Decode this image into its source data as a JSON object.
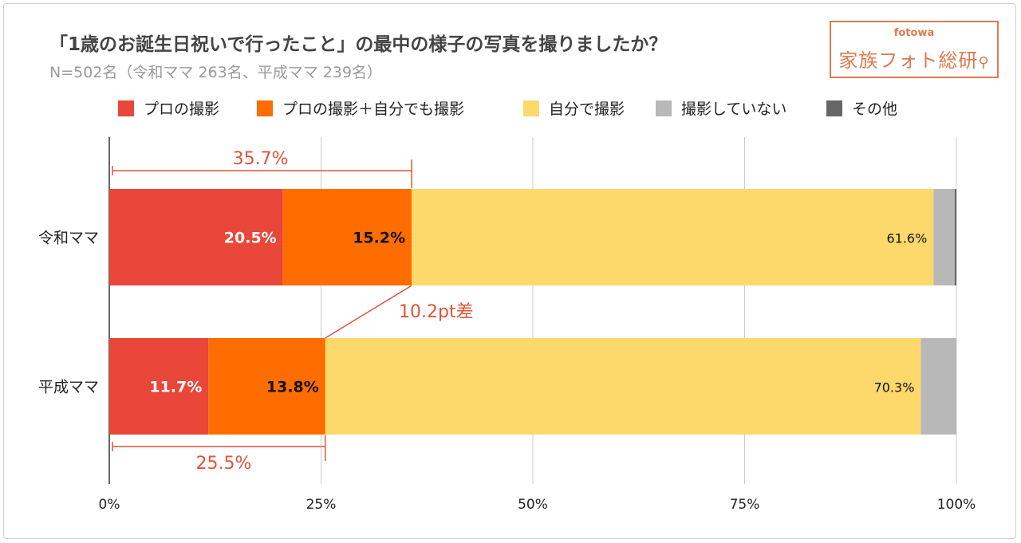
{
  "chart_data": {
    "type": "bar",
    "orientation": "horizontal",
    "stacked": true,
    "title": "「1歳のお誕生日祝いで行ったこと」の最中の様子の写真を撮りましたか？",
    "subtitle": "N=502名（令和ママ 263名、平成ママ 239名）",
    "categories": [
      "令和ママ",
      "平成ママ"
    ],
    "series": [
      {
        "name": "プロの撮影",
        "color": "#e8473a",
        "values": [
          20.5,
          11.7
        ],
        "labels": [
          "20.5%",
          "11.7%"
        ],
        "label_color": "#ffffff"
      },
      {
        "name": "プロの撮影＋自分でも撮影",
        "color": "#ff6d00",
        "values": [
          15.2,
          13.8
        ],
        "labels": [
          "15.2%",
          "13.8%"
        ],
        "label_color": "#111111"
      },
      {
        "name": "自分で撮影",
        "color": "#fdd86b",
        "values": [
          61.6,
          70.3
        ],
        "labels": [
          "61.6%",
          "70.3%"
        ],
        "label_color": "#111111"
      },
      {
        "name": "撮影していない",
        "color": "#b8b8b8",
        "values": [
          2.5,
          4.2
        ],
        "labels": [
          "",
          ""
        ],
        "label_color": "#111111"
      },
      {
        "name": "その他",
        "color": "#666666",
        "values": [
          0.2,
          0.0
        ],
        "labels": [
          "",
          ""
        ],
        "label_color": "#111111"
      }
    ],
    "xlim": [
      0,
      100
    ],
    "xticks": [
      0,
      25,
      50,
      75,
      100
    ],
    "xtick_labels": [
      "0%",
      "25%",
      "50%",
      "75%",
      "100%"
    ],
    "grid": true,
    "legend": "top",
    "annotations": {
      "reiwa_total": "35.7%",
      "heisei_total": "25.5%",
      "difference": "10.2pt差"
    }
  },
  "logo": {
    "top_text": "fotowa",
    "main_text": "家族フォト総研",
    "color": "#e07a4f"
  }
}
